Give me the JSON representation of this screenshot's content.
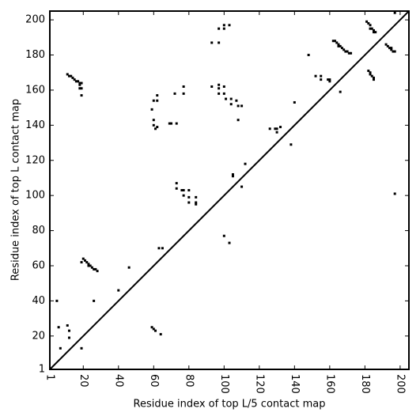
{
  "chart_data": {
    "type": "scatter",
    "xlabel": "Residue index of top L/5 contact map",
    "ylabel": "Residue index of top L contact map",
    "xlim": [
      1,
      205
    ],
    "ylim": [
      1,
      205
    ],
    "xticks": [
      1,
      20,
      40,
      60,
      80,
      100,
      120,
      140,
      160,
      180,
      200
    ],
    "yticks": [
      1,
      20,
      40,
      60,
      80,
      100,
      120,
      140,
      160,
      180,
      200
    ],
    "color": "#000000",
    "x": [
      11,
      12,
      13,
      14,
      15,
      16,
      17,
      18,
      19,
      18,
      18,
      19,
      19,
      19,
      20,
      21,
      22,
      23,
      23,
      24,
      25,
      26,
      27,
      28,
      5,
      6,
      7,
      11,
      12,
      12,
      19,
      26,
      40,
      46,
      59,
      60,
      61,
      64,
      63,
      65,
      59,
      60,
      62,
      62,
      60,
      60,
      61,
      62,
      69,
      70,
      73,
      72,
      77,
      77,
      73,
      73,
      76,
      77,
      80,
      77,
      80,
      80,
      84,
      84,
      84,
      93,
      97,
      97,
      100,
      100,
      103,
      93,
      97,
      97,
      97,
      100,
      100,
      101,
      104,
      104,
      107,
      108,
      110,
      108,
      100,
      103,
      105,
      105,
      110,
      112,
      126,
      129,
      130,
      130,
      132,
      138,
      140,
      148,
      152,
      155,
      155,
      159,
      160,
      160,
      162,
      163,
      164,
      165,
      165,
      166,
      167,
      168,
      169,
      170,
      171,
      172,
      166,
      181,
      182,
      183,
      183,
      184,
      185,
      185,
      186,
      182,
      183,
      183,
      184,
      185,
      185,
      192,
      193,
      194,
      195,
      195,
      196,
      197,
      197,
      197
    ],
    "y": [
      169,
      168,
      168,
      167,
      166,
      165,
      165,
      164,
      164,
      163,
      161,
      161,
      157,
      62,
      64,
      63,
      62,
      61,
      60,
      60,
      59,
      58,
      58,
      57,
      40,
      25,
      13,
      26,
      23,
      19,
      13,
      40,
      46,
      59,
      25,
      24,
      23,
      21,
      70,
      70,
      149,
      154,
      154,
      157,
      143,
      140,
      138,
      139,
      141,
      141,
      141,
      158,
      158,
      162,
      107,
      104,
      103,
      103,
      103,
      100,
      99,
      96,
      96,
      99,
      95,
      187,
      187,
      195,
      195,
      197,
      197,
      162,
      163,
      161,
      158,
      162,
      158,
      155,
      155,
      152,
      154,
      151,
      151,
      143,
      77,
      73,
      112,
      111,
      105,
      118,
      138,
      138,
      136,
      138,
      139,
      129,
      153,
      180,
      168,
      168,
      166,
      166,
      166,
      165,
      188,
      188,
      187,
      186,
      185,
      185,
      184,
      183,
      182,
      182,
      181,
      181,
      159,
      199,
      198,
      197,
      195,
      195,
      194,
      193,
      193,
      171,
      170,
      169,
      168,
      167,
      166,
      186,
      185,
      184,
      184,
      183,
      182,
      182,
      204,
      101
    ]
  }
}
